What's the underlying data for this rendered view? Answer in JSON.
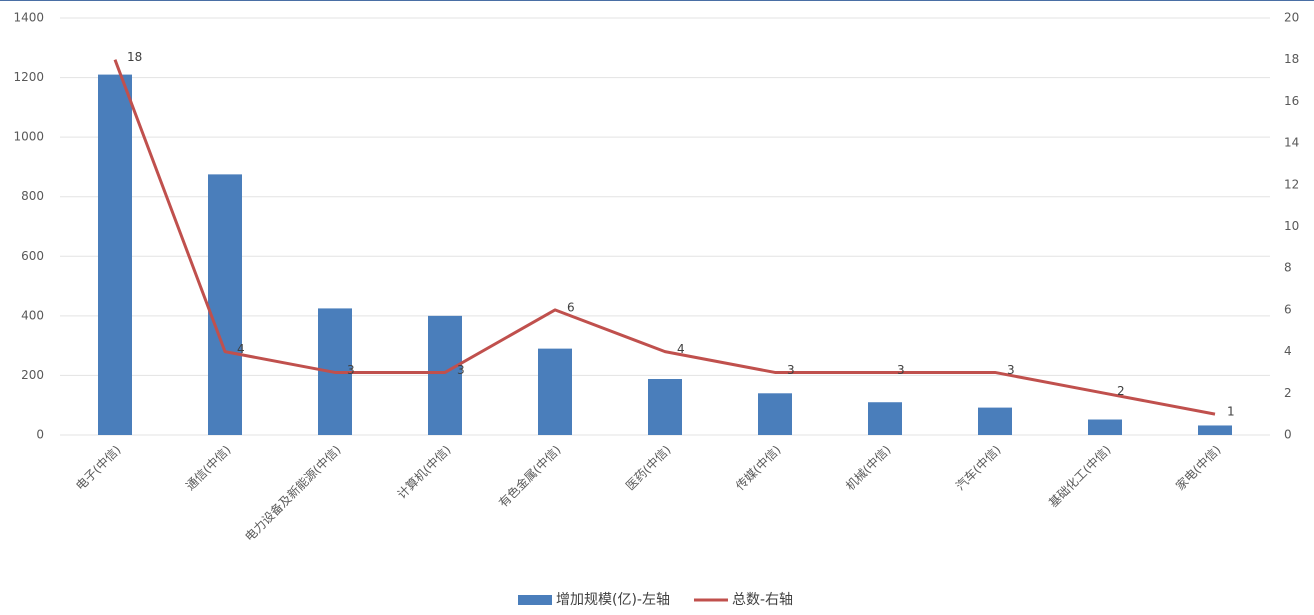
{
  "chart_data": {
    "type": "bar",
    "categories": [
      "电子(中信)",
      "通信(中信)",
      "电力设备及新能源(中信)",
      "计算机(中信)",
      "有色金属(中信)",
      "医药(中信)",
      "传媒(中信)",
      "机械(中信)",
      "汽车(中信)",
      "基础化工(中信)",
      "家电(中信)"
    ],
    "series": [
      {
        "name": "增加规模(亿)-左轴",
        "type": "bar",
        "color": "#4a7ebb",
        "values": [
          1210,
          875,
          425,
          400,
          290,
          188,
          140,
          110,
          92,
          52,
          32
        ]
      },
      {
        "name": "总数-右轴",
        "type": "line",
        "axis": "y2",
        "color": "#c0504d",
        "values": [
          18,
          4,
          3,
          3,
          6,
          4,
          3,
          3,
          3,
          2,
          1
        ]
      }
    ],
    "ylim": [
      0,
      1400
    ],
    "yticks": [
      0,
      200,
      400,
      600,
      800,
      1000,
      1200,
      1400
    ],
    "y2lim": [
      0,
      20
    ],
    "y2ticks": [
      0,
      2,
      4,
      6,
      8,
      10,
      12,
      14,
      16,
      18,
      20
    ],
    "grid": true,
    "legend": "bottom"
  }
}
